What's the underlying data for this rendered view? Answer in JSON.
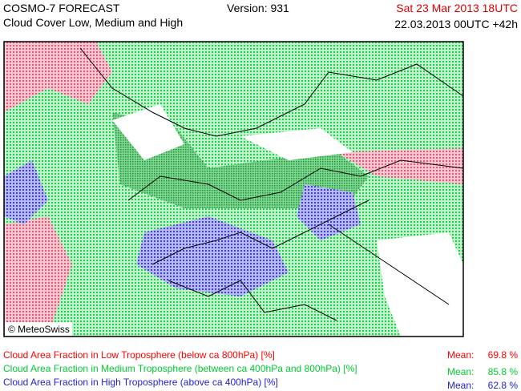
{
  "header": {
    "title": "COSMO-7 FORECAST",
    "subtitle": "Cloud Cover Low, Medium and High",
    "version": "Version: 931",
    "valid_time": "Sat 23 Mar 2013 18UTC",
    "run_time": "22.03.2013 00UTC +42h"
  },
  "map": {
    "credit": "© MeteoSwiss"
  },
  "legend": [
    {
      "label": "Cloud Area Fraction in Low Troposphere (below ca 800hPa) [%]",
      "mean_label": "Mean:",
      "mean": "69.8 %"
    },
    {
      "label": "Cloud Area Fraction in Medium Troposphere (between ca 400hPa and 800hPa) [%]",
      "mean_label": "Mean:",
      "mean": "85.8 %"
    },
    {
      "label": "Cloud Area Fraction in High Troposphere (above ca 400hPa) [%]",
      "mean_label": "Mean:",
      "mean": "62.8 %"
    }
  ]
}
